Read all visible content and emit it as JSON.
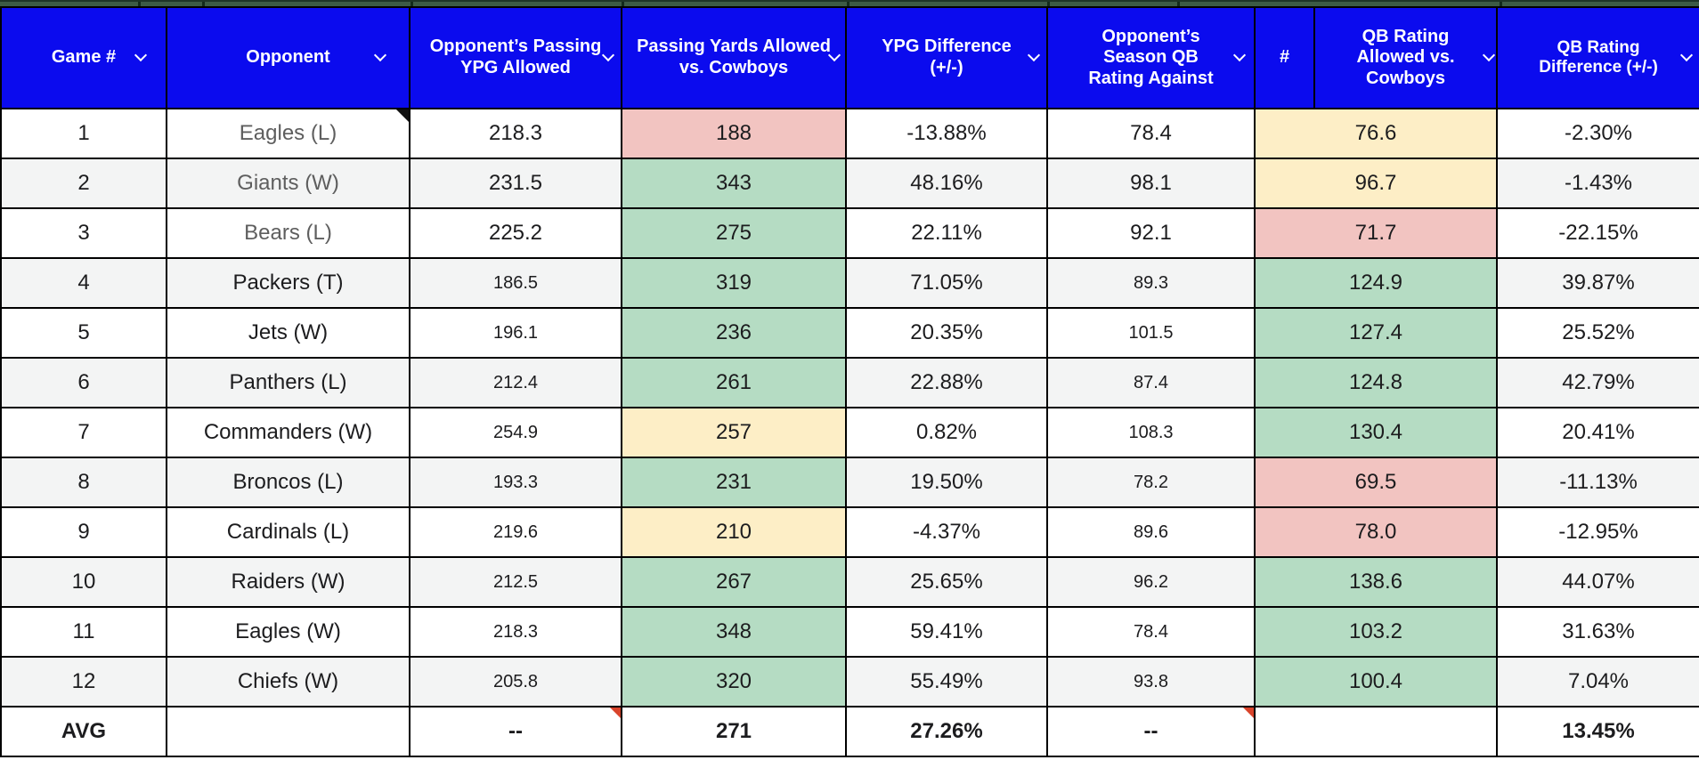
{
  "header": {
    "columns": [
      {
        "label": "Game #",
        "filter": true
      },
      {
        "label": "Opponent",
        "filter": true
      },
      {
        "label": "Opponent’s Passing YPG Allowed",
        "filter": true
      },
      {
        "label": "Passing Yards Allowed vs. Cowboys",
        "filter": true
      },
      {
        "label": "YPG Difference (+/-)",
        "filter": true
      },
      {
        "label": "Opponent’s Season QB Rating Against",
        "filter": true
      },
      {
        "label": "#",
        "filter": false
      },
      {
        "label": "QB Rating Allowed vs. Cowboys",
        "filter": true
      },
      {
        "label": "QB Rating Difference (+/-)",
        "filter": true
      }
    ]
  },
  "rows": [
    {
      "game": "1",
      "opponent": "Eagles (L)",
      "muted": true,
      "note": true,
      "ypg_allowed": "218.3",
      "small": false,
      "pass_yards": "188",
      "pass_color": "negative_red",
      "ypg_diff": "-13.88%",
      "qb_rating_against": "78.4",
      "qb_rating_allowed": "76.6",
      "qb_color": "warning_yellow",
      "qb_diff": "-2.30%"
    },
    {
      "game": "2",
      "opponent": "Giants (W)",
      "muted": true,
      "note": false,
      "ypg_allowed": "231.5",
      "small": false,
      "pass_yards": "343",
      "pass_color": "positive_green",
      "ypg_diff": "48.16%",
      "qb_rating_against": "98.1",
      "qb_rating_allowed": "96.7",
      "qb_color": "warning_yellow",
      "qb_diff": "-1.43%"
    },
    {
      "game": "3",
      "opponent": "Bears (L)",
      "muted": true,
      "note": false,
      "ypg_allowed": "225.2",
      "small": false,
      "pass_yards": "275",
      "pass_color": "positive_green",
      "ypg_diff": "22.11%",
      "qb_rating_against": "92.1",
      "qb_rating_allowed": "71.7",
      "qb_color": "negative_red",
      "qb_diff": "-22.15%"
    },
    {
      "game": "4",
      "opponent": "Packers (T)",
      "muted": false,
      "note": false,
      "ypg_allowed": "186.5",
      "small": true,
      "pass_yards": "319",
      "pass_color": "positive_green",
      "ypg_diff": "71.05%",
      "qb_rating_against": "89.3",
      "qb_rating_allowed": "124.9",
      "qb_color": "positive_green",
      "qb_diff": "39.87%"
    },
    {
      "game": "5",
      "opponent": "Jets (W)",
      "muted": false,
      "note": false,
      "ypg_allowed": "196.1",
      "small": true,
      "pass_yards": "236",
      "pass_color": "positive_green",
      "ypg_diff": "20.35%",
      "qb_rating_against": "101.5",
      "qb_rating_allowed": "127.4",
      "qb_color": "positive_green",
      "qb_diff": "25.52%"
    },
    {
      "game": "6",
      "opponent": "Panthers (L)",
      "muted": false,
      "note": false,
      "ypg_allowed": "212.4",
      "small": true,
      "pass_yards": "261",
      "pass_color": "positive_green",
      "ypg_diff": "22.88%",
      "qb_rating_against": "87.4",
      "qb_rating_allowed": "124.8",
      "qb_color": "positive_green",
      "qb_diff": "42.79%"
    },
    {
      "game": "7",
      "opponent": "Commanders (W)",
      "muted": false,
      "note": false,
      "ypg_allowed": "254.9",
      "small": true,
      "pass_yards": "257",
      "pass_color": "warning_yellow",
      "ypg_diff": "0.82%",
      "qb_rating_against": "108.3",
      "qb_rating_allowed": "130.4",
      "qb_color": "positive_green",
      "qb_diff": "20.41%"
    },
    {
      "game": "8",
      "opponent": "Broncos (L)",
      "muted": false,
      "note": false,
      "ypg_allowed": "193.3",
      "small": true,
      "pass_yards": "231",
      "pass_color": "positive_green",
      "ypg_diff": "19.50%",
      "qb_rating_against": "78.2",
      "qb_rating_allowed": "69.5",
      "qb_color": "negative_red",
      "qb_diff": "-11.13%"
    },
    {
      "game": "9",
      "opponent": "Cardinals (L)",
      "muted": false,
      "note": false,
      "ypg_allowed": "219.6",
      "small": true,
      "pass_yards": "210",
      "pass_color": "warning_yellow",
      "ypg_diff": "-4.37%",
      "qb_rating_against": "89.6",
      "qb_rating_allowed": "78.0",
      "qb_color": "negative_red",
      "qb_diff": "-12.95%"
    },
    {
      "game": "10",
      "opponent": "Raiders (W)",
      "muted": false,
      "note": false,
      "ypg_allowed": "212.5",
      "small": true,
      "pass_yards": "267",
      "pass_color": "positive_green",
      "ypg_diff": "25.65%",
      "qb_rating_against": "96.2",
      "qb_rating_allowed": "138.6",
      "qb_color": "positive_green",
      "qb_diff": "44.07%"
    },
    {
      "game": "11",
      "opponent": "Eagles (W)",
      "muted": false,
      "note": false,
      "ypg_allowed": "218.3",
      "small": true,
      "pass_yards": "348",
      "pass_color": "positive_green",
      "ypg_diff": "59.41%",
      "qb_rating_against": "78.4",
      "qb_rating_allowed": "103.2",
      "qb_color": "positive_green",
      "qb_diff": "31.63%"
    },
    {
      "game": "12",
      "opponent": "Chiefs (W)",
      "muted": false,
      "note": false,
      "ypg_allowed": "205.8",
      "small": true,
      "pass_yards": "320",
      "pass_color": "positive_green",
      "ypg_diff": "55.49%",
      "qb_rating_against": "93.8",
      "qb_rating_allowed": "100.4",
      "qb_color": "positive_green",
      "qb_diff": "7.04%"
    }
  ],
  "avg_row": {
    "label": "AVG",
    "opponent": "",
    "ypg_allowed": "--",
    "pass_yards": "271",
    "ypg_diff": "27.26%",
    "qb_rating_against": "--",
    "qb_rating_allowed": "",
    "qb_diff": "13.45%"
  },
  "colors": {
    "header_bg": "#0b0bee",
    "positive_green": "#b5dcc3",
    "warning_yellow": "#fdeec6",
    "negative_red": "#f2c4c1",
    "band_gray": "#f3f4f4",
    "strip_green": "#3c5b45",
    "note_black": "#111111",
    "note_red": "#d9442b"
  }
}
